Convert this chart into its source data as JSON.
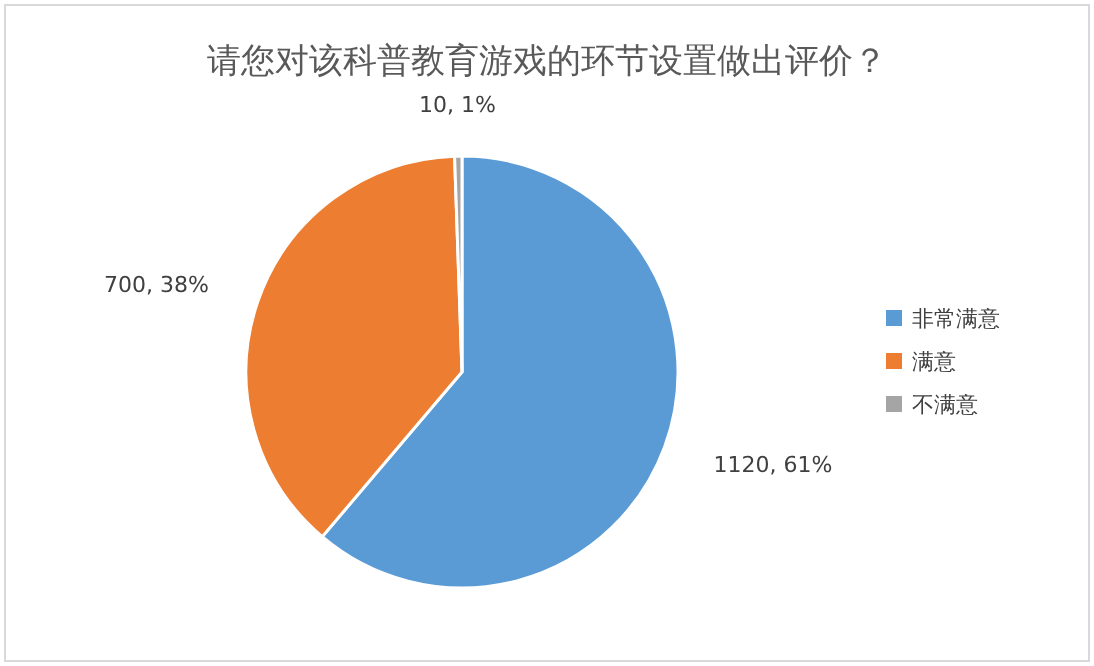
{
  "chart_data": {
    "type": "pie",
    "title": "请您对该科普教育游戏的环节设置做出评价？",
    "categories": [
      "非常满意",
      "满意",
      "不满意"
    ],
    "values": [
      1120,
      700,
      10
    ],
    "colors": [
      "#5b9bd5",
      "#ed7d31",
      "#a5a5a5"
    ],
    "value_labels": [
      "1120, 61%",
      "700, 38%",
      "10, 1%"
    ],
    "legend": "right"
  }
}
